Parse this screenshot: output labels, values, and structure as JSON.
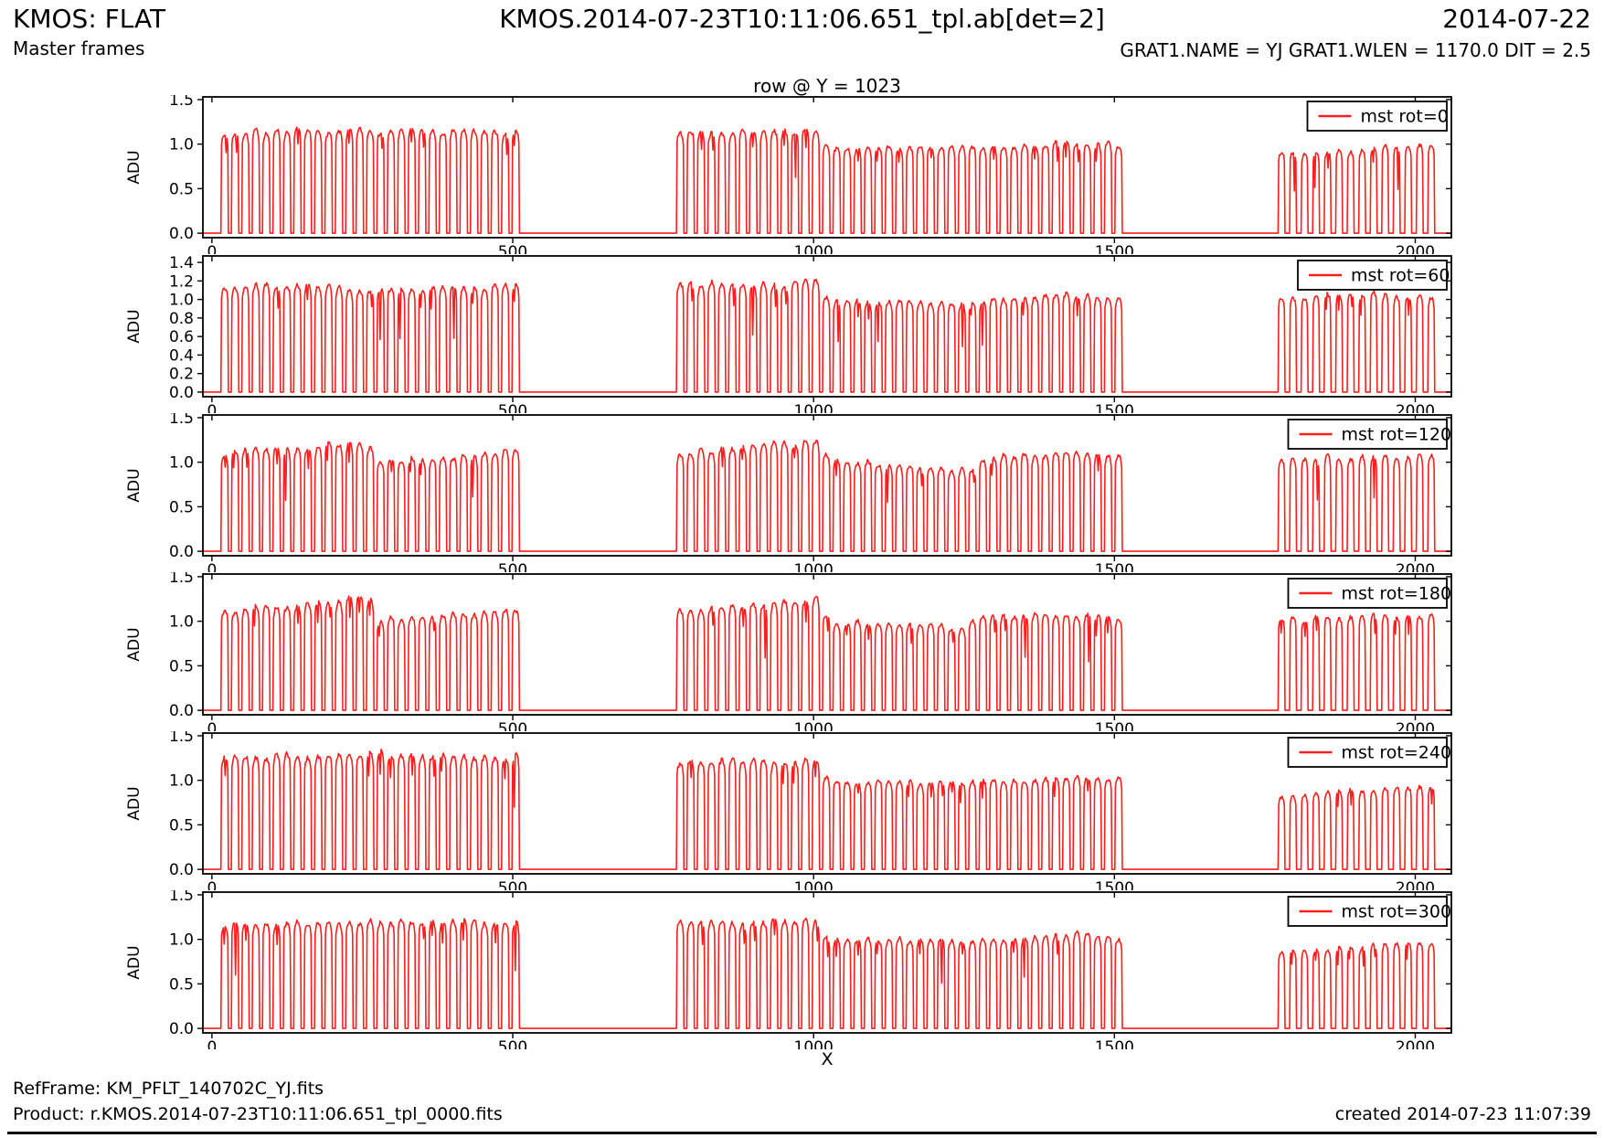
{
  "header": {
    "app_title": "KMOS: FLAT",
    "subtitle": "Master frames",
    "center_title": "KMOS.2014-07-23T10:11:06.651_tpl.ab[det=2]",
    "date": "2014-07-22",
    "params_line": "GRAT1.NAME = YJ GRAT1.WLEN = 1170.0 DIT = 2.5"
  },
  "footer": {
    "refframe": "RefFrame: KM_PFLT_140702C_YJ.fits",
    "product": "Product: r.KMOS.2014-07-23T10:11:06.651_tpl_0000.fits",
    "created": "created 2014-07-23 11:07:39"
  },
  "chart_data": {
    "type": "line",
    "title": "row @ Y = 1023",
    "xlabel": "X",
    "ylabel": "ADU",
    "line_color": "#ff1d1d",
    "axis_color": "#000000",
    "xlim": [
      -15,
      2060
    ],
    "x_ticks": [
      0,
      500,
      1000,
      1500,
      2000
    ],
    "grid": false,
    "legend_position": "upper right",
    "description": "Six stacked flat-field row profiles (detector row Y=1023) for rotator angles 0-300 deg; comb-like slitlet transmission: three illuminated blocks x=15-516, 772-1518, 1772-2040 (ADU ~0.8-1.3), zero elsewhere",
    "tooth": {
      "edge": 2.0,
      "top_samples": 6
    },
    "groups": [
      {
        "x0": 15,
        "x1": 516,
        "teeth": 29,
        "duty": 0.72
      },
      {
        "x0": 772,
        "x1": 1518,
        "teeth": 43,
        "duty": 0.72
      },
      {
        "x0": 1772,
        "x1": 2040,
        "teeth": 14,
        "duty": 0.6
      }
    ],
    "panels": [
      {
        "legend": "mst rot=0",
        "seed": 7,
        "ylim": [
          -0.05,
          1.53
        ],
        "yticks": [
          0.0,
          0.5,
          1.0,
          1.5
        ],
        "envelopes": [
          [
            [
              15,
              1.13
            ],
            [
              250,
              1.16
            ],
            [
              516,
              1.13
            ]
          ],
          [
            [
              772,
              1.13
            ],
            [
              1000,
              1.16
            ],
            [
              1022,
              0.97
            ],
            [
              1250,
              0.95
            ],
            [
              1430,
              1.01
            ],
            [
              1518,
              0.99
            ]
          ],
          [
            [
              1772,
              0.88
            ],
            [
              1950,
              0.96
            ],
            [
              2040,
              1.0
            ]
          ]
        ]
      },
      {
        "legend": "mst rot=60",
        "seed": 11,
        "ylim": [
          -0.05,
          1.47
        ],
        "yticks": [
          0.0,
          0.2,
          0.4,
          0.6,
          0.8,
          1.0,
          1.2,
          1.4
        ],
        "envelopes": [
          [
            [
              15,
              1.12
            ],
            [
              130,
              1.17
            ],
            [
              260,
              1.1
            ],
            [
              400,
              1.13
            ],
            [
              516,
              1.15
            ]
          ],
          [
            [
              772,
              1.15
            ],
            [
              1005,
              1.2
            ],
            [
              1025,
              1.0
            ],
            [
              1230,
              0.96
            ],
            [
              1420,
              1.06
            ],
            [
              1518,
              1.0
            ]
          ],
          [
            [
              1772,
              1.0
            ],
            [
              1900,
              1.06
            ],
            [
              2040,
              1.04
            ]
          ]
        ]
      },
      {
        "legend": "mst rot=120",
        "seed": 23,
        "ylim": [
          -0.05,
          1.53
        ],
        "yticks": [
          0.0,
          0.5,
          1.0,
          1.5
        ],
        "envelopes": [
          [
            [
              15,
              1.1
            ],
            [
              150,
              1.17
            ],
            [
              258,
              1.24
            ],
            [
              272,
              1.0
            ],
            [
              380,
              1.05
            ],
            [
              516,
              1.15
            ]
          ],
          [
            [
              772,
              1.1
            ],
            [
              920,
              1.2
            ],
            [
              1005,
              1.24
            ],
            [
              1025,
              1.02
            ],
            [
              1140,
              0.97
            ],
            [
              1265,
              0.9
            ],
            [
              1285,
              1.06
            ],
            [
              1430,
              1.1
            ],
            [
              1518,
              1.04
            ]
          ],
          [
            [
              1772,
              1.04
            ],
            [
              2040,
              1.08
            ]
          ]
        ]
      },
      {
        "legend": "mst rot=180",
        "seed": 5,
        "ylim": [
          -0.05,
          1.53
        ],
        "yticks": [
          0.0,
          0.5,
          1.0,
          1.5
        ],
        "envelopes": [
          [
            [
              15,
              1.1
            ],
            [
              160,
              1.2
            ],
            [
              262,
              1.29
            ],
            [
              278,
              1.02
            ],
            [
              420,
              1.08
            ],
            [
              516,
              1.15
            ]
          ],
          [
            [
              772,
              1.1
            ],
            [
              1005,
              1.26
            ],
            [
              1025,
              1.0
            ],
            [
              1245,
              0.93
            ],
            [
              1275,
              1.07
            ],
            [
              1450,
              1.08
            ],
            [
              1518,
              1.04
            ]
          ],
          [
            [
              1772,
              1.02
            ],
            [
              1950,
              1.07
            ],
            [
              2040,
              1.05
            ]
          ]
        ]
      },
      {
        "legend": "mst rot=240",
        "seed": 17,
        "ylim": [
          -0.05,
          1.53
        ],
        "yticks": [
          0.0,
          0.5,
          1.0,
          1.5
        ],
        "envelopes": [
          [
            [
              15,
              1.25
            ],
            [
              260,
              1.3
            ],
            [
              516,
              1.26
            ]
          ],
          [
            [
              772,
              1.21
            ],
            [
              1005,
              1.22
            ],
            [
              1025,
              1.0
            ],
            [
              1250,
              0.96
            ],
            [
              1430,
              1.05
            ],
            [
              1518,
              1.02
            ]
          ],
          [
            [
              1772,
              0.82
            ],
            [
              1950,
              0.91
            ],
            [
              2040,
              0.95
            ]
          ]
        ]
      },
      {
        "legend": "mst rot=300",
        "seed": 29,
        "ylim": [
          -0.05,
          1.53
        ],
        "yticks": [
          0.0,
          0.5,
          1.0,
          1.5
        ],
        "envelopes": [
          [
            [
              15,
              1.17
            ],
            [
              300,
              1.2
            ],
            [
              516,
              1.18
            ]
          ],
          [
            [
              772,
              1.18
            ],
            [
              1005,
              1.22
            ],
            [
              1025,
              1.01
            ],
            [
              1250,
              0.98
            ],
            [
              1430,
              1.06
            ],
            [
              1518,
              1.01
            ]
          ],
          [
            [
              1772,
              0.85
            ],
            [
              2040,
              0.97
            ]
          ]
        ]
      }
    ]
  }
}
